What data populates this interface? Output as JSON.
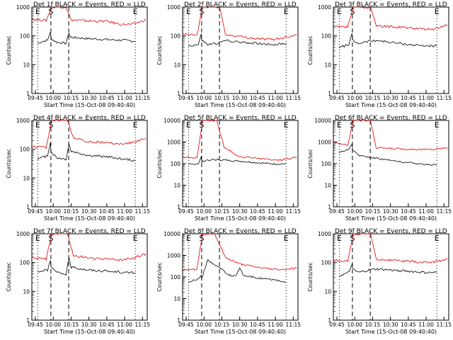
{
  "chart_data": {
    "type": "line",
    "y_scale": "log",
    "ylim": [
      1,
      1000
    ],
    "xlim": [
      "09:42",
      "11:19"
    ],
    "xlabel": "Start Time (15-Oct-08 09:40:40)",
    "ylabel": "Counts/sec",
    "x_tick_labels": [
      "09:45",
      "10:00",
      "10:15",
      "10:30",
      "10:45",
      "11:00",
      "11:15"
    ],
    "markers": [
      {
        "label": "E",
        "time": "09:47",
        "style": "dotted"
      },
      {
        "label": "S",
        "time": "09:58",
        "style": "dashed"
      },
      {
        "label": "S",
        "time": "10:13",
        "style": "dashed"
      },
      {
        "label": "E",
        "time": "11:09",
        "style": "dotted"
      }
    ],
    "series_colors": {
      "events": "#000000",
      "lld": "#e00000"
    },
    "panels": [
      {
        "title": "Det 1f BLACK = Events, RED = LLD",
        "marker_labels": [
          "E",
          "S",
          "E"
        ],
        "y_ticks": [
          "1",
          "10",
          "100",
          "1000"
        ],
        "ylim": [
          1,
          1000
        ],
        "events": [
          [
            9.78,
            55
          ],
          [
            9.85,
            65
          ],
          [
            9.92,
            70
          ],
          [
            9.96,
            140
          ],
          [
            9.97,
            80
          ],
          [
            10.05,
            60
          ],
          [
            10.18,
            55
          ],
          [
            10.22,
            130
          ],
          [
            10.24,
            90
          ],
          [
            10.5,
            80
          ],
          [
            10.75,
            75
          ],
          [
            11.0,
            70
          ],
          [
            11.15,
            65
          ]
        ],
        "lld": [
          [
            9.7,
            380
          ],
          [
            9.9,
            340
          ],
          [
            9.98,
            1000
          ],
          [
            10.18,
            1000
          ],
          [
            10.25,
            360
          ],
          [
            10.5,
            330
          ],
          [
            10.75,
            320
          ],
          [
            10.95,
            250
          ],
          [
            11.1,
            250
          ],
          [
            11.3,
            360
          ]
        ]
      },
      {
        "title": "Det 2f BLACK = Events, RED = LLD",
        "marker_labels": [
          "E",
          "S",
          "E"
        ],
        "y_ticks": [
          "1",
          "10",
          "100",
          "1000"
        ],
        "ylim": [
          1,
          1000
        ],
        "events": [
          [
            9.78,
            45
          ],
          [
            9.92,
            50
          ],
          [
            9.96,
            110
          ],
          [
            9.97,
            70
          ],
          [
            10.05,
            50
          ],
          [
            10.2,
            55
          ],
          [
            10.3,
            70
          ],
          [
            10.5,
            60
          ],
          [
            10.75,
            55
          ],
          [
            11.0,
            50
          ],
          [
            11.15,
            55
          ]
        ],
        "lld": [
          [
            9.7,
            115
          ],
          [
            9.9,
            105
          ],
          [
            9.98,
            1000
          ],
          [
            10.22,
            1000
          ],
          [
            10.3,
            110
          ],
          [
            10.5,
            95
          ],
          [
            10.75,
            80
          ],
          [
            10.95,
            75
          ],
          [
            11.1,
            85
          ],
          [
            11.3,
            110
          ]
        ]
      },
      {
        "title": "Det 3f BLACK = Events, RED = LLD",
        "marker_labels": [
          "E",
          "S",
          "E"
        ],
        "y_ticks": [
          "1",
          "10",
          "100",
          "1000"
        ],
        "ylim": [
          1,
          1000
        ],
        "events": [
          [
            9.78,
            40
          ],
          [
            9.92,
            50
          ],
          [
            9.96,
            120
          ],
          [
            9.97,
            70
          ],
          [
            10.05,
            55
          ],
          [
            10.2,
            65
          ],
          [
            10.3,
            70
          ],
          [
            10.5,
            60
          ],
          [
            10.75,
            50
          ],
          [
            11.0,
            45
          ],
          [
            11.15,
            45
          ]
        ],
        "lld": [
          [
            9.7,
            220
          ],
          [
            9.9,
            200
          ],
          [
            9.98,
            1000
          ],
          [
            10.22,
            1000
          ],
          [
            10.3,
            220
          ],
          [
            10.5,
            210
          ],
          [
            10.75,
            190
          ],
          [
            10.95,
            170
          ],
          [
            11.1,
            170
          ],
          [
            11.3,
            240
          ]
        ]
      },
      {
        "title": "Det 4f BLACK = Events, RED = LLD",
        "marker_labels": [
          "E",
          "S",
          "E"
        ],
        "y_ticks": [
          "1",
          "10",
          "100",
          "1000"
        ],
        "ylim": [
          1,
          1000
        ],
        "events": [
          [
            9.78,
            45
          ],
          [
            9.92,
            60
          ],
          [
            9.96,
            180
          ],
          [
            9.97,
            80
          ],
          [
            10.05,
            50
          ],
          [
            10.18,
            45
          ],
          [
            10.22,
            150
          ],
          [
            10.25,
            85
          ],
          [
            10.5,
            60
          ],
          [
            10.75,
            55
          ],
          [
            11.0,
            45
          ],
          [
            11.15,
            40
          ]
        ],
        "lld": [
          [
            9.7,
            120
          ],
          [
            9.9,
            115
          ],
          [
            9.98,
            1000
          ],
          [
            10.2,
            1000
          ],
          [
            10.28,
            250
          ],
          [
            10.5,
            180
          ],
          [
            10.75,
            170
          ],
          [
            10.95,
            150
          ],
          [
            11.1,
            170
          ],
          [
            11.3,
            240
          ]
        ]
      },
      {
        "title": "Det 5f BLACK = Events, RED = LLD",
        "marker_labels": [
          "E",
          "S",
          "E"
        ],
        "y_ticks": [
          "1",
          "10",
          "100",
          "1000",
          "10000"
        ],
        "ylim": [
          1,
          10000
        ],
        "events": [
          [
            9.78,
            90
          ],
          [
            9.92,
            100
          ],
          [
            9.96,
            200
          ],
          [
            9.97,
            120
          ],
          [
            10.05,
            150
          ],
          [
            10.2,
            150
          ],
          [
            10.35,
            140
          ],
          [
            10.5,
            130
          ],
          [
            10.75,
            110
          ],
          [
            11.0,
            95
          ],
          [
            11.15,
            100
          ]
        ],
        "lld": [
          [
            9.7,
            200
          ],
          [
            9.9,
            180
          ],
          [
            9.98,
            10000
          ],
          [
            10.18,
            10000
          ],
          [
            10.28,
            600
          ],
          [
            10.5,
            200
          ],
          [
            10.75,
            180
          ],
          [
            10.95,
            150
          ],
          [
            11.1,
            150
          ],
          [
            11.3,
            200
          ]
        ]
      },
      {
        "title": "Det 6f BLACK = Events, RED = LLD",
        "marker_labels": [
          "E",
          "S",
          "E"
        ],
        "y_ticks": [
          "1",
          "10",
          "100",
          "1000",
          "10000"
        ],
        "ylim": [
          1,
          10000
        ],
        "events": [
          [
            9.78,
            300
          ],
          [
            9.92,
            500
          ],
          [
            9.96,
            800
          ],
          [
            9.97,
            400
          ],
          [
            10.05,
            250
          ],
          [
            10.2,
            200
          ],
          [
            10.35,
            170
          ],
          [
            10.5,
            140
          ],
          [
            10.75,
            110
          ],
          [
            11.0,
            90
          ],
          [
            11.15,
            90
          ]
        ],
        "lld": [
          [
            9.7,
            1000
          ],
          [
            9.9,
            700
          ],
          [
            9.98,
            10000
          ],
          [
            10.22,
            10000
          ],
          [
            10.3,
            550
          ],
          [
            10.5,
            500
          ],
          [
            10.75,
            470
          ],
          [
            10.95,
            450
          ],
          [
            11.1,
            450
          ],
          [
            11.3,
            560
          ]
        ]
      },
      {
        "title": "Det 7f BLACK = Events, RED = LLD",
        "marker_labels": [
          "E",
          "S",
          "E"
        ],
        "y_ticks": [
          "1",
          "10",
          "100",
          "1000"
        ],
        "ylim": [
          1,
          1000
        ],
        "events": [
          [
            9.78,
            50
          ],
          [
            9.92,
            55
          ],
          [
            9.96,
            110
          ],
          [
            9.97,
            70
          ],
          [
            10.05,
            45
          ],
          [
            10.18,
            40
          ],
          [
            10.22,
            140
          ],
          [
            10.25,
            70
          ],
          [
            10.5,
            55
          ],
          [
            10.75,
            50
          ],
          [
            11.0,
            45
          ],
          [
            11.15,
            45
          ]
        ],
        "lld": [
          [
            9.7,
            150
          ],
          [
            9.9,
            130
          ],
          [
            9.98,
            1000
          ],
          [
            10.2,
            1000
          ],
          [
            10.28,
            180
          ],
          [
            10.5,
            140
          ],
          [
            10.75,
            130
          ],
          [
            10.95,
            120
          ],
          [
            11.1,
            140
          ],
          [
            11.3,
            200
          ]
        ]
      },
      {
        "title": "Det 8f BLACK = Events, RED = LLD",
        "marker_labels": [
          "E",
          "S",
          "E"
        ],
        "y_ticks": [
          "1",
          "10",
          "100",
          "1000",
          "10000"
        ],
        "ylim": [
          1,
          10000
        ],
        "events": [
          [
            9.78,
            60
          ],
          [
            9.92,
            80
          ],
          [
            9.96,
            120
          ],
          [
            9.97,
            90
          ],
          [
            10.05,
            600
          ],
          [
            10.2,
            300
          ],
          [
            10.35,
            120
          ],
          [
            10.45,
            110
          ],
          [
            10.5,
            250
          ],
          [
            10.55,
            120
          ],
          [
            10.75,
            90
          ],
          [
            11.0,
            70
          ],
          [
            11.15,
            60
          ]
        ],
        "lld": [
          [
            9.7,
            230
          ],
          [
            9.9,
            220
          ],
          [
            9.98,
            10000
          ],
          [
            10.15,
            10000
          ],
          [
            10.3,
            800
          ],
          [
            10.5,
            400
          ],
          [
            10.75,
            280
          ],
          [
            10.95,
            230
          ],
          [
            11.1,
            220
          ],
          [
            11.3,
            260
          ]
        ]
      },
      {
        "title": "Det 9f BLACK = Events, RED = LLD",
        "marker_labels": [
          "E",
          "S",
          "E"
        ],
        "y_ticks": [
          "1",
          "10",
          "100",
          "1000"
        ],
        "ylim": [
          1,
          1000
        ],
        "events": [
          [
            9.78,
            35
          ],
          [
            9.92,
            45
          ],
          [
            9.96,
            90
          ],
          [
            9.97,
            60
          ],
          [
            10.05,
            45
          ],
          [
            10.2,
            55
          ],
          [
            10.3,
            60
          ],
          [
            10.5,
            55
          ],
          [
            10.75,
            50
          ],
          [
            11.0,
            45
          ],
          [
            11.15,
            45
          ]
        ],
        "lld": [
          [
            9.7,
            120
          ],
          [
            9.9,
            110
          ],
          [
            9.98,
            1000
          ],
          [
            10.22,
            1000
          ],
          [
            10.3,
            130
          ],
          [
            10.5,
            120
          ],
          [
            10.75,
            110
          ],
          [
            10.95,
            100
          ],
          [
            11.1,
            105
          ],
          [
            11.3,
            130
          ]
        ]
      }
    ]
  }
}
